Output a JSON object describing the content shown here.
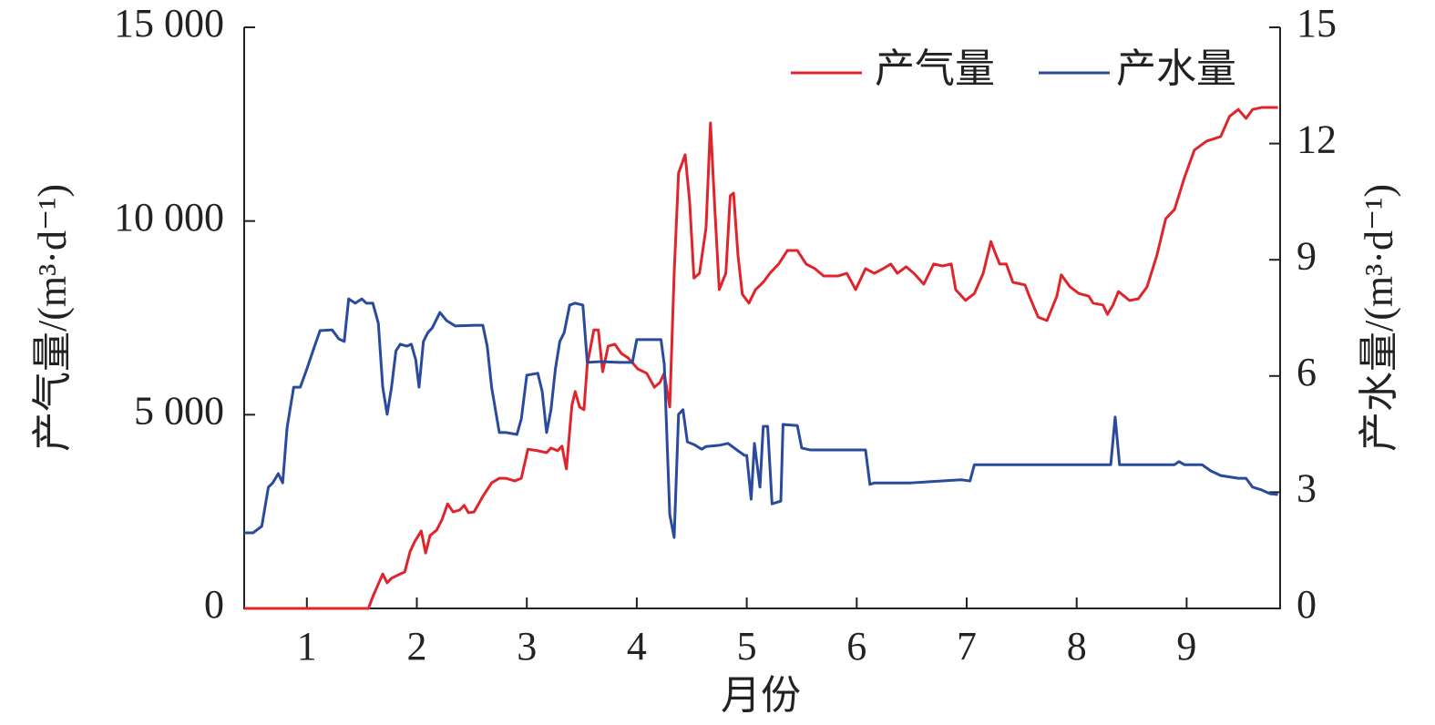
{
  "chart_data": {
    "type": "line",
    "xlabel": "月份",
    "ylabel": "产气量/(m³·d⁻¹)",
    "y2label": "产水量/(m³·d⁻¹)",
    "xlim": [
      0.43,
      9.85
    ],
    "xticks": [
      1,
      2,
      3,
      4,
      5,
      6,
      7,
      8,
      9
    ],
    "ylim": [
      0,
      15000
    ],
    "yticks": [
      0,
      {
        "value": 5000,
        "label": "5 000"
      },
      {
        "value": 10000,
        "label": "10 000"
      },
      {
        "value": 15000,
        "label": "15 000"
      }
    ],
    "y2lim": [
      0,
      15
    ],
    "y2ticks": [
      0,
      3,
      6,
      9,
      12,
      15
    ],
    "grid": false,
    "legend": "top-right",
    "series": [
      {
        "name": "产气量",
        "color": "#e0242b",
        "x": [
          0.43,
          1.56,
          1.6,
          1.69,
          1.73,
          1.77,
          1.85,
          1.89,
          1.94,
          1.98,
          2.04,
          2.08,
          2.12,
          2.18,
          2.23,
          2.28,
          2.33,
          2.39,
          2.43,
          2.47,
          2.52,
          2.6,
          2.68,
          2.75,
          2.81,
          2.89,
          2.95,
          3.01,
          3.1,
          3.18,
          3.22,
          3.28,
          3.32,
          3.36,
          3.41,
          3.44,
          3.48,
          3.52,
          3.55,
          3.61,
          3.65,
          3.69,
          3.74,
          3.8,
          3.86,
          3.92,
          4.01,
          4.09,
          4.16,
          4.21,
          4.25,
          4.3,
          4.34,
          4.38,
          4.44,
          4.48,
          4.52,
          4.57,
          4.63,
          4.67,
          4.71,
          4.75,
          4.81,
          4.85,
          4.88,
          4.92,
          4.96,
          5.02,
          5.08,
          5.15,
          5.21,
          5.29,
          5.37,
          5.46,
          5.54,
          5.62,
          5.7,
          5.83,
          5.91,
          5.99,
          6.08,
          6.16,
          6.24,
          6.31,
          6.37,
          6.45,
          6.52,
          6.61,
          6.7,
          6.78,
          6.86,
          6.9,
          6.99,
          7.07,
          7.15,
          7.22,
          7.26,
          7.3,
          7.36,
          7.42,
          7.53,
          7.57,
          7.65,
          7.73,
          7.82,
          7.86,
          7.94,
          8.02,
          8.11,
          8.15,
          8.24,
          8.28,
          8.33,
          8.38,
          8.48,
          8.56,
          8.64,
          8.73,
          8.81,
          8.89,
          8.98,
          9.07,
          9.18,
          9.31,
          9.39,
          9.47,
          9.54,
          9.6,
          9.68,
          9.83
        ],
        "values": [
          0,
          0,
          306,
          890,
          660,
          780,
          890,
          940,
          1480,
          1720,
          2000,
          1430,
          1880,
          2020,
          2300,
          2700,
          2490,
          2540,
          2660,
          2470,
          2490,
          2890,
          3240,
          3360,
          3360,
          3290,
          3360,
          4110,
          4070,
          4020,
          4140,
          4070,
          4190,
          3600,
          5240,
          5600,
          5200,
          5130,
          6300,
          7190,
          7190,
          6110,
          6770,
          6820,
          6580,
          6470,
          6180,
          6070,
          5710,
          5830,
          6070,
          5200,
          8650,
          11240,
          11710,
          10530,
          8530,
          8650,
          9830,
          12530,
          10300,
          8230,
          8650,
          10650,
          10720,
          9120,
          8110,
          7880,
          8230,
          8420,
          8650,
          8890,
          9240,
          9240,
          8890,
          8770,
          8580,
          8580,
          8650,
          8230,
          8770,
          8650,
          8770,
          8890,
          8650,
          8820,
          8650,
          8370,
          8890,
          8840,
          8890,
          8230,
          7950,
          8130,
          8650,
          9470,
          9170,
          8890,
          8890,
          8420,
          8350,
          8060,
          7520,
          7430,
          8060,
          8610,
          8300,
          8130,
          8060,
          7880,
          7830,
          7590,
          7830,
          8180,
          7950,
          7990,
          8300,
          9120,
          10060,
          10300,
          11120,
          11830,
          12060,
          12180,
          12700,
          12880,
          12650,
          12880,
          12930,
          12930
        ]
      },
      {
        "name": "产水量",
        "color": "#2a4a9e",
        "axis": "y2",
        "x": [
          0.43,
          0.51,
          0.59,
          0.65,
          0.69,
          0.74,
          0.78,
          0.82,
          0.88,
          0.94,
          1.0,
          1.07,
          1.12,
          1.23,
          1.29,
          1.34,
          1.38,
          1.44,
          1.5,
          1.54,
          1.6,
          1.65,
          1.69,
          1.73,
          1.77,
          1.81,
          1.85,
          1.91,
          1.95,
          1.99,
          2.02,
          2.06,
          2.1,
          2.14,
          2.21,
          2.27,
          2.35,
          2.52,
          2.6,
          2.64,
          2.68,
          2.75,
          2.81,
          2.91,
          2.95,
          3.0,
          3.1,
          3.14,
          3.18,
          3.22,
          3.26,
          3.3,
          3.34,
          3.39,
          3.44,
          3.51,
          3.55,
          3.67,
          3.84,
          3.96,
          4.0,
          4.1,
          4.22,
          4.25,
          4.3,
          4.34,
          4.38,
          4.42,
          4.46,
          4.52,
          4.59,
          4.63,
          4.75,
          4.83,
          4.92,
          4.98,
          5.0,
          5.04,
          5.07,
          5.12,
          5.15,
          5.19,
          5.23,
          5.31,
          5.33,
          5.46,
          5.5,
          5.58,
          5.83,
          6.08,
          6.12,
          6.16,
          6.49,
          6.95,
          7.03,
          7.07,
          7.19,
          7.32,
          7.73,
          8.31,
          8.35,
          8.39,
          8.73,
          8.89,
          8.93,
          8.98,
          9.14,
          9.22,
          9.31,
          9.47,
          9.54,
          9.6,
          9.68,
          9.76,
          9.83
        ],
        "values": [
          1.95,
          1.95,
          2.12,
          3.13,
          3.24,
          3.48,
          3.24,
          4.66,
          5.71,
          5.71,
          6.18,
          6.77,
          7.17,
          7.19,
          6.96,
          6.89,
          7.99,
          7.88,
          7.99,
          7.88,
          7.88,
          7.36,
          5.71,
          5.01,
          5.71,
          6.65,
          6.82,
          6.77,
          6.82,
          6.42,
          5.71,
          6.89,
          7.12,
          7.24,
          7.64,
          7.43,
          7.29,
          7.31,
          7.31,
          6.77,
          5.71,
          4.54,
          4.54,
          4.49,
          4.89,
          6.02,
          6.07,
          5.6,
          4.54,
          5.13,
          6.18,
          6.89,
          7.12,
          7.83,
          7.88,
          7.83,
          6.35,
          6.37,
          6.35,
          6.35,
          6.94,
          6.94,
          6.94,
          6.3,
          2.42,
          1.83,
          5.01,
          5.13,
          4.3,
          4.23,
          4.11,
          4.18,
          4.21,
          4.26,
          4.07,
          3.95,
          3.95,
          2.82,
          4.26,
          3.13,
          4.7,
          4.7,
          2.7,
          2.77,
          4.75,
          4.72,
          4.14,
          4.09,
          4.09,
          4.09,
          3.2,
          3.24,
          3.24,
          3.32,
          3.29,
          3.71,
          3.71,
          3.71,
          3.71,
          3.71,
          4.94,
          3.71,
          3.71,
          3.71,
          3.79,
          3.71,
          3.71,
          3.55,
          3.43,
          3.36,
          3.36,
          3.13,
          3.06,
          2.96,
          2.94
        ]
      }
    ]
  }
}
